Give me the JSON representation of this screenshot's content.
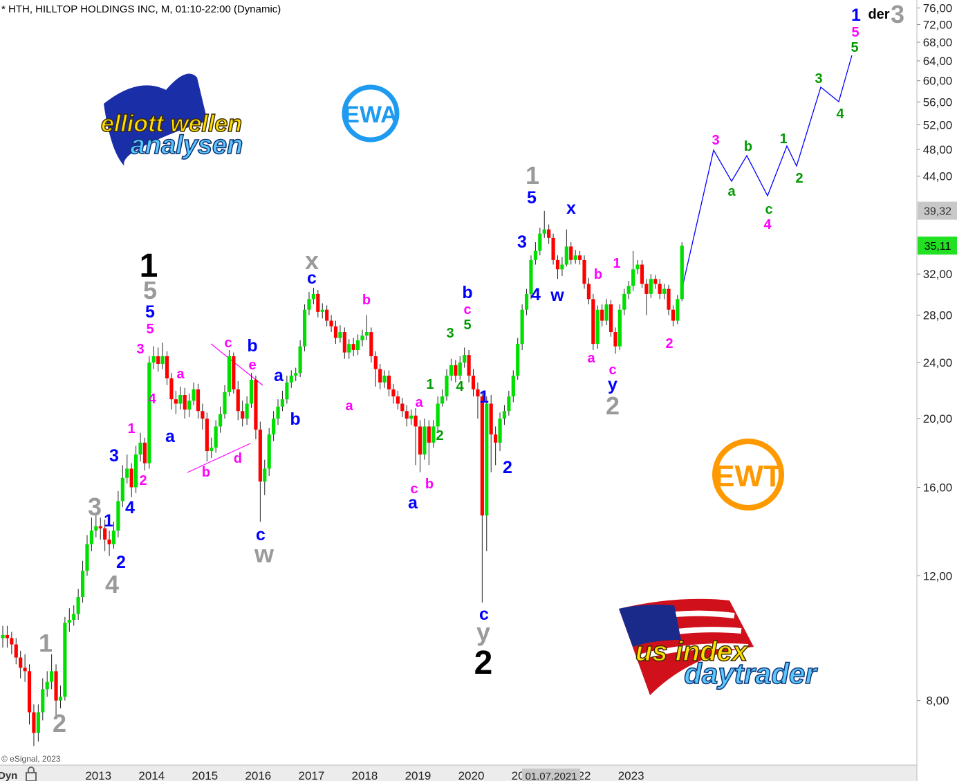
{
  "chart_data": {
    "type": "candlestick",
    "title": "* HTH, HILLTOP HOLDINGS INC, M, 01:10-22:00 (Dynamic)",
    "copyright": "© eSignal, 2023",
    "mode_label": "Dyn",
    "log_scale": true,
    "grid": false,
    "up_color": "#00e000",
    "down_color": "#ff0000",
    "ylim": [
      6.5,
      78
    ],
    "yticks": [
      {
        "value": 8,
        "label": "8,00"
      },
      {
        "value": 12,
        "label": "12,00"
      },
      {
        "value": 16,
        "label": "16,00"
      },
      {
        "value": 20,
        "label": "20,00"
      },
      {
        "value": 24,
        "label": "24,00"
      },
      {
        "value": 28,
        "label": "28,00"
      },
      {
        "value": 32,
        "label": "32,00"
      },
      {
        "value": 44,
        "label": "44,00"
      },
      {
        "value": 48,
        "label": "48,00"
      },
      {
        "value": 52,
        "label": "52,00"
      },
      {
        "value": 56,
        "label": "56,00"
      },
      {
        "value": 60,
        "label": "60,00"
      },
      {
        "value": 64,
        "label": "64,00"
      },
      {
        "value": 68,
        "label": "68,00"
      },
      {
        "value": 72,
        "label": "72,00"
      },
      {
        "value": 76,
        "label": "76,00"
      }
    ],
    "last_price": {
      "value": 35.11,
      "label": "35,11"
    },
    "crosshair_price": {
      "value": 39.32,
      "label": "39,32"
    },
    "crosshair_date": "01.07.2021",
    "categories": [
      null,
      null,
      null,
      null,
      null,
      null,
      null,
      null,
      null,
      null,
      null,
      null,
      null,
      null,
      null,
      null,
      null,
      null,
      null,
      null,
      null,
      null,
      "2013",
      null,
      null,
      null,
      null,
      null,
      null,
      null,
      null,
      null,
      null,
      null,
      "2014",
      null,
      null,
      null,
      null,
      null,
      null,
      null,
      null,
      null,
      null,
      null,
      "2015",
      null,
      null,
      null,
      null,
      null,
      null,
      null,
      null,
      null,
      null,
      null,
      "2016",
      null,
      null,
      null,
      null,
      null,
      null,
      null,
      null,
      null,
      null,
      null,
      "2017",
      null,
      null,
      null,
      null,
      null,
      null,
      null,
      null,
      null,
      null,
      null,
      "2018",
      null,
      null,
      null,
      null,
      null,
      null,
      null,
      null,
      null,
      null,
      null,
      "2019",
      null,
      null,
      null,
      null,
      null,
      null,
      null,
      null,
      null,
      null,
      null,
      "2020",
      null,
      null,
      null,
      null,
      null,
      null,
      null,
      null,
      null,
      null,
      null,
      "2021",
      null,
      null,
      null,
      null,
      null,
      null,
      null,
      null,
      null,
      null,
      null,
      "2022",
      null,
      null,
      null,
      null,
      null,
      null,
      null,
      null,
      null,
      null,
      null,
      "2023",
      null,
      null,
      null,
      null,
      null,
      null,
      null,
      null,
      null,
      null,
      null
    ],
    "open": [
      9.8,
      9.9,
      9.8,
      9.6,
      9.2,
      8.9,
      8.8,
      7.7,
      7.2,
      7.7,
      8.3,
      8.5,
      8.8,
      8.0,
      8.1,
      10.3,
      10.4,
      10.6,
      11.2,
      12.2,
      13.3,
      13.9,
      14.1,
      14.0,
      13.5,
      13.3,
      13.9,
      15.3,
      16.5,
      17.0,
      16.0,
      17.8,
      18.5,
      17.3,
      24.0,
      24.5,
      23.9,
      24.5,
      22.8,
      21.3,
      21.0,
      21.6,
      20.6,
      21.2,
      22.0,
      20.5,
      20.0,
      18.0,
      18.2,
      19.5,
      20.3,
      21.8,
      24.5,
      22.0,
      20.5,
      20.0,
      21.0,
      22.7,
      19.3,
      16.3,
      17.0,
      19.0,
      20.0,
      20.8,
      21.3,
      22.5,
      23.0,
      23.2,
      25.3,
      28.5,
      29.5,
      30.0,
      28.3,
      28.5,
      27.5,
      27.0,
      26.0,
      26.5,
      24.8,
      25.5,
      25.0,
      25.8,
      26.2,
      26.5,
      24.5,
      23.5,
      22.5,
      23.0,
      22.0,
      21.5,
      21.0,
      20.5,
      20.0,
      20.2,
      19.5,
      17.8,
      19.5,
      18.5,
      19.5,
      21.0,
      21.5,
      23.0,
      23.8,
      23.0,
      24.0,
      24.6,
      23.0,
      22.0,
      21.5,
      14.6,
      21.0,
      19.0,
      18.5,
      20.0,
      20.5,
      21.5,
      23.0,
      25.5,
      28.5,
      30.0,
      33.5,
      34.5,
      36.5,
      37.0,
      36.0,
      33.5,
      32.5,
      33.0,
      35.0,
      33.5,
      34.0,
      33.5,
      31.0,
      29.5,
      25.5,
      28.5,
      27.5,
      29.0,
      26.5,
      25.3,
      28.5,
      30.0,
      30.8,
      32.5,
      33.0,
      31.0,
      30.0,
      31.5,
      31.0,
      30.0,
      30.5,
      28.5,
      27.5,
      29.5
    ],
    "high": [
      10.2,
      10.2,
      10.0,
      9.8,
      9.4,
      9.3,
      9.0,
      7.9,
      7.9,
      8.6,
      8.8,
      9.3,
      9.0,
      8.4,
      10.5,
      10.8,
      10.9,
      11.5,
      12.6,
      13.7,
      14.5,
      14.6,
      14.5,
      14.4,
      13.9,
      14.3,
      15.8,
      17.2,
      17.8,
      17.3,
      18.3,
      19.1,
      18.8,
      24.5,
      25.3,
      25.2,
      25.6,
      24.9,
      23.2,
      21.9,
      22.2,
      22.1,
      21.7,
      22.5,
      22.4,
      21.0,
      20.4,
      18.8,
      19.9,
      20.8,
      22.3,
      25.0,
      24.8,
      22.6,
      21.2,
      21.5,
      23.2,
      23.0,
      19.8,
      17.5,
      19.4,
      20.5,
      21.3,
      21.9,
      23.0,
      23.4,
      23.6,
      25.8,
      29.0,
      30.2,
      30.6,
      30.4,
      29.1,
      28.9,
      28.0,
      27.5,
      27.1,
      26.9,
      25.9,
      26.0,
      26.3,
      26.7,
      28.0,
      26.9,
      24.9,
      23.9,
      23.4,
      23.4,
      22.4,
      21.9,
      21.4,
      20.9,
      20.6,
      20.7,
      19.9,
      20.0,
      19.9,
      19.9,
      21.5,
      22.0,
      23.5,
      24.3,
      24.2,
      24.5,
      25.2,
      25.0,
      23.5,
      22.5,
      21.8,
      21.5,
      21.6,
      19.5,
      20.4,
      20.9,
      21.9,
      23.4,
      26.0,
      29.0,
      30.5,
      34.0,
      35.5,
      37.2,
      39.3,
      37.6,
      36.5,
      34.0,
      33.8,
      37.0,
      35.5,
      34.6,
      34.5,
      34.0,
      31.6,
      30.0,
      28.9,
      29.0,
      29.5,
      29.4,
      26.9,
      29.0,
      30.5,
      31.3,
      34.5,
      33.5,
      33.5,
      31.5,
      32.0,
      31.9,
      31.5,
      31.0,
      30.9,
      28.9,
      29.9,
      35.5
    ],
    "low": [
      9.5,
      9.5,
      9.3,
      9.0,
      8.6,
      8.5,
      7.4,
      6.9,
      7.0,
      7.5,
      8.1,
      8.3,
      7.6,
      7.8,
      8.0,
      10.0,
      10.2,
      10.4,
      11.0,
      12.0,
      13.0,
      13.6,
      13.5,
      13.0,
      12.8,
      13.1,
      13.6,
      15.0,
      16.2,
      15.5,
      15.7,
      17.4,
      16.9,
      17.0,
      23.5,
      23.3,
      23.5,
      22.3,
      20.6,
      20.3,
      20.6,
      20.0,
      20.1,
      20.9,
      20.0,
      19.3,
      17.4,
      17.6,
      17.9,
      19.1,
      20.0,
      21.5,
      21.7,
      19.9,
      19.5,
      19.6,
      20.7,
      18.7,
      14.3,
      15.6,
      16.6,
      18.6,
      19.6,
      20.5,
      21.0,
      22.1,
      22.6,
      22.9,
      24.9,
      28.0,
      29.0,
      27.8,
      27.7,
      27.0,
      26.5,
      25.5,
      25.6,
      24.3,
      24.3,
      24.5,
      24.6,
      25.3,
      25.8,
      24.0,
      22.2,
      22.0,
      22.1,
      21.5,
      21.0,
      20.6,
      20.1,
      19.5,
      19.6,
      17.2,
      16.8,
      17.5,
      17.2,
      18.2,
      19.2,
      20.8,
      21.2,
      22.6,
      22.5,
      22.7,
      23.6,
      22.5,
      21.5,
      20.0,
      11.0,
      13.0,
      16.8,
      17.2,
      18.0,
      19.6,
      20.2,
      21.1,
      22.7,
      25.0,
      28.0,
      29.5,
      33.0,
      34.0,
      36.0,
      35.3,
      33.0,
      31.5,
      31.8,
      32.8,
      33.0,
      33.1,
      33.0,
      30.5,
      29.0,
      25.0,
      25.1,
      27.0,
      27.1,
      26.1,
      24.7,
      25.0,
      28.0,
      29.5,
      30.3,
      32.0,
      30.6,
      28.0,
      29.6,
      30.5,
      29.5,
      29.5,
      28.0,
      27.0,
      27.2,
      29.3
    ],
    "close": [
      9.9,
      9.8,
      9.6,
      9.2,
      8.9,
      8.8,
      7.7,
      7.2,
      7.7,
      8.3,
      8.5,
      8.8,
      8.0,
      8.1,
      10.3,
      10.4,
      10.6,
      11.2,
      12.2,
      13.3,
      13.9,
      14.1,
      14.0,
      13.5,
      13.3,
      13.9,
      15.3,
      16.5,
      17.0,
      16.0,
      17.8,
      18.5,
      17.3,
      24.0,
      24.5,
      23.9,
      24.5,
      22.8,
      21.3,
      21.0,
      21.6,
      20.6,
      21.2,
      22.0,
      20.5,
      20.0,
      18.0,
      18.2,
      19.5,
      20.3,
      21.8,
      24.5,
      22.0,
      20.5,
      20.0,
      21.0,
      22.7,
      19.3,
      16.3,
      17.0,
      19.0,
      20.0,
      20.8,
      21.3,
      22.5,
      23.0,
      23.2,
      25.3,
      28.5,
      29.5,
      30.0,
      28.3,
      28.5,
      27.5,
      27.0,
      26.0,
      26.5,
      24.8,
      25.5,
      25.0,
      25.8,
      26.2,
      26.5,
      24.5,
      23.5,
      22.5,
      23.0,
      22.0,
      21.5,
      21.0,
      20.5,
      20.0,
      20.2,
      19.5,
      17.8,
      19.5,
      18.5,
      19.5,
      21.0,
      21.5,
      23.0,
      23.8,
      23.0,
      24.0,
      24.6,
      23.0,
      22.0,
      21.5,
      14.6,
      21.0,
      19.0,
      18.5,
      20.0,
      20.5,
      21.5,
      23.0,
      25.5,
      28.5,
      30.0,
      33.5,
      34.5,
      36.5,
      37.0,
      36.0,
      33.5,
      32.5,
      33.0,
      35.0,
      33.5,
      34.0,
      33.5,
      31.0,
      29.5,
      25.5,
      28.5,
      27.5,
      29.0,
      26.5,
      25.3,
      28.5,
      30.0,
      30.8,
      32.5,
      33.0,
      31.0,
      30.0,
      31.5,
      31.0,
      30.0,
      30.5,
      28.5,
      27.5,
      29.5,
      35.1
    ],
    "wave_labels": [
      {
        "text": "1",
        "color": "#9a9a9a"
      },
      {
        "text": "2",
        "color": "#9a9a9a"
      },
      {
        "text": "3",
        "color": "#9a9a9a"
      },
      {
        "text": "4",
        "color": "#9a9a9a"
      },
      {
        "text": "1",
        "color": "#0000ff"
      },
      {
        "text": "2",
        "color": "#0000ff"
      },
      {
        "text": "3",
        "color": "#0000ff"
      },
      {
        "text": "4",
        "color": "#0000ff"
      },
      {
        "text": "1",
        "color": "#ff00ff"
      },
      {
        "text": "2",
        "color": "#ff00ff"
      },
      {
        "text": "3",
        "color": "#ff00ff"
      },
      {
        "text": "4",
        "color": "#ff00ff"
      },
      {
        "text": "5",
        "color": "#ff00ff"
      },
      {
        "text": "5",
        "color": "#0000ff"
      },
      {
        "text": "5",
        "color": "#9a9a9a"
      },
      {
        "text": "1",
        "color": "#000000"
      },
      {
        "text": "a",
        "color": "#ff00ff"
      },
      {
        "text": "a",
        "color": "#0000ff"
      },
      {
        "text": "b",
        "color": "#ff00ff"
      },
      {
        "text": "c",
        "color": "#ff00ff"
      },
      {
        "text": "d",
        "color": "#ff00ff"
      },
      {
        "text": "e",
        "color": "#ff00ff"
      },
      {
        "text": "b",
        "color": "#0000ff"
      },
      {
        "text": "c",
        "color": "#0000ff"
      },
      {
        "text": "w",
        "color": "#9a9a9a"
      },
      {
        "text": "a",
        "color": "#0000ff"
      },
      {
        "text": "b",
        "color": "#0000ff"
      },
      {
        "text": "x",
        "color": "#9a9a9a"
      },
      {
        "text": "c",
        "color": "#0000ff"
      },
      {
        "text": "b",
        "color": "#ff00ff"
      },
      {
        "text": "a",
        "color": "#ff00ff"
      },
      {
        "text": "a",
        "color": "#ff00ff"
      },
      {
        "text": "c",
        "color": "#ff00ff"
      },
      {
        "text": "b",
        "color": "#ff00ff"
      },
      {
        "text": "a",
        "color": "#0000ff"
      },
      {
        "text": "1",
        "color": "#009900"
      },
      {
        "text": "2",
        "color": "#009900"
      },
      {
        "text": "3",
        "color": "#009900"
      },
      {
        "text": "4",
        "color": "#009900"
      },
      {
        "text": "5",
        "color": "#009900"
      },
      {
        "text": "c",
        "color": "#ff00ff"
      },
      {
        "text": "b",
        "color": "#0000ff"
      },
      {
        "text": "1",
        "color": "#0000ff"
      },
      {
        "text": "2",
        "color": "#0000ff"
      },
      {
        "text": "c",
        "color": "#0000ff"
      },
      {
        "text": "y",
        "color": "#9a9a9a"
      },
      {
        "text": "2",
        "color": "#000000"
      },
      {
        "text": "3",
        "color": "#0000ff"
      },
      {
        "text": "4",
        "color": "#0000ff"
      },
      {
        "text": "5",
        "color": "#0000ff"
      },
      {
        "text": "1",
        "color": "#9a9a9a"
      },
      {
        "text": "w",
        "color": "#0000ff"
      },
      {
        "text": "x",
        "color": "#0000ff"
      },
      {
        "text": "b",
        "color": "#ff00ff"
      },
      {
        "text": "1",
        "color": "#ff00ff"
      },
      {
        "text": "a",
        "color": "#ff00ff"
      },
      {
        "text": "c",
        "color": "#ff00ff"
      },
      {
        "text": "y",
        "color": "#0000ff"
      },
      {
        "text": "2",
        "color": "#9a9a9a"
      },
      {
        "text": "2",
        "color": "#ff00ff"
      },
      {
        "text": "3",
        "color": "#ff00ff"
      },
      {
        "text": "a",
        "color": "#009900"
      },
      {
        "text": "b",
        "color": "#009900"
      },
      {
        "text": "c",
        "color": "#009900"
      },
      {
        "text": "4",
        "color": "#ff00ff"
      },
      {
        "text": "1",
        "color": "#009900"
      },
      {
        "text": "2",
        "color": "#009900"
      },
      {
        "text": "3",
        "color": "#009900"
      },
      {
        "text": "4",
        "color": "#009900"
      },
      {
        "text": "5",
        "color": "#009900"
      },
      {
        "text": "5",
        "color": "#ff00ff"
      },
      {
        "text": "1",
        "color": "#0000ff"
      },
      {
        "text": "der",
        "color": "#000000"
      },
      {
        "text": "3",
        "color": "#9a9a9a"
      }
    ],
    "logos": {
      "ewa": "EWA",
      "ewt": "EWT",
      "ewa_top": "elliott wellen",
      "ewa_bottom": "analysen",
      "us_top": "us index",
      "us_bottom": "daytrader"
    }
  }
}
